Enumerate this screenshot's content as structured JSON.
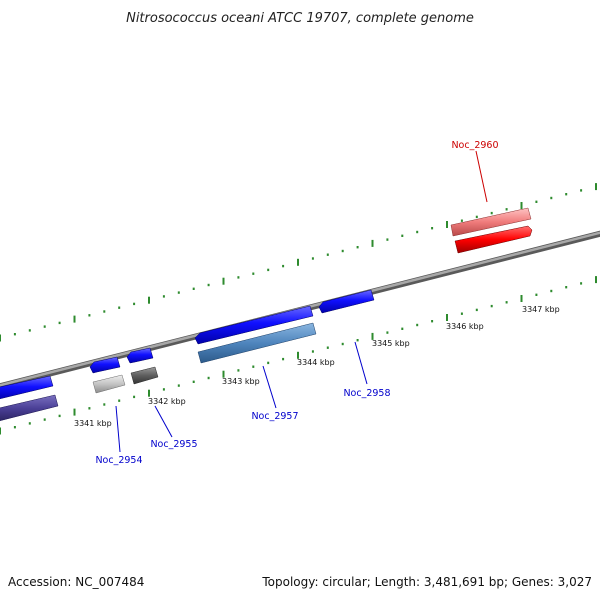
{
  "title": "Nitrosococcus oceani ATCC 19707, complete genome",
  "footer": {
    "accession": "Accession: NC_007484",
    "summary": "Topology: circular; Length: 3,481,691 bp; Genes: 3,027"
  },
  "colors": {
    "backbone": "#8a8a8a",
    "tick_dot": "#2e8b2e",
    "blue_label": "#0000cc",
    "red_label": "#cc0000"
  },
  "kbp_labels": [
    "3341 kbp",
    "3342 kbp",
    "3343 kbp",
    "3344 kbp",
    "3345 kbp",
    "3346 kbp",
    "3347 kbp"
  ],
  "gene_labels": [
    {
      "text": "Noc_2954",
      "color": "#0000cc"
    },
    {
      "text": "Noc_2955",
      "color": "#0000cc"
    },
    {
      "text": "Noc_2957",
      "color": "#0000cc"
    },
    {
      "text": "Noc_2958",
      "color": "#0000cc"
    },
    {
      "text": "Noc_2960",
      "color": "#cc0000"
    }
  ]
}
